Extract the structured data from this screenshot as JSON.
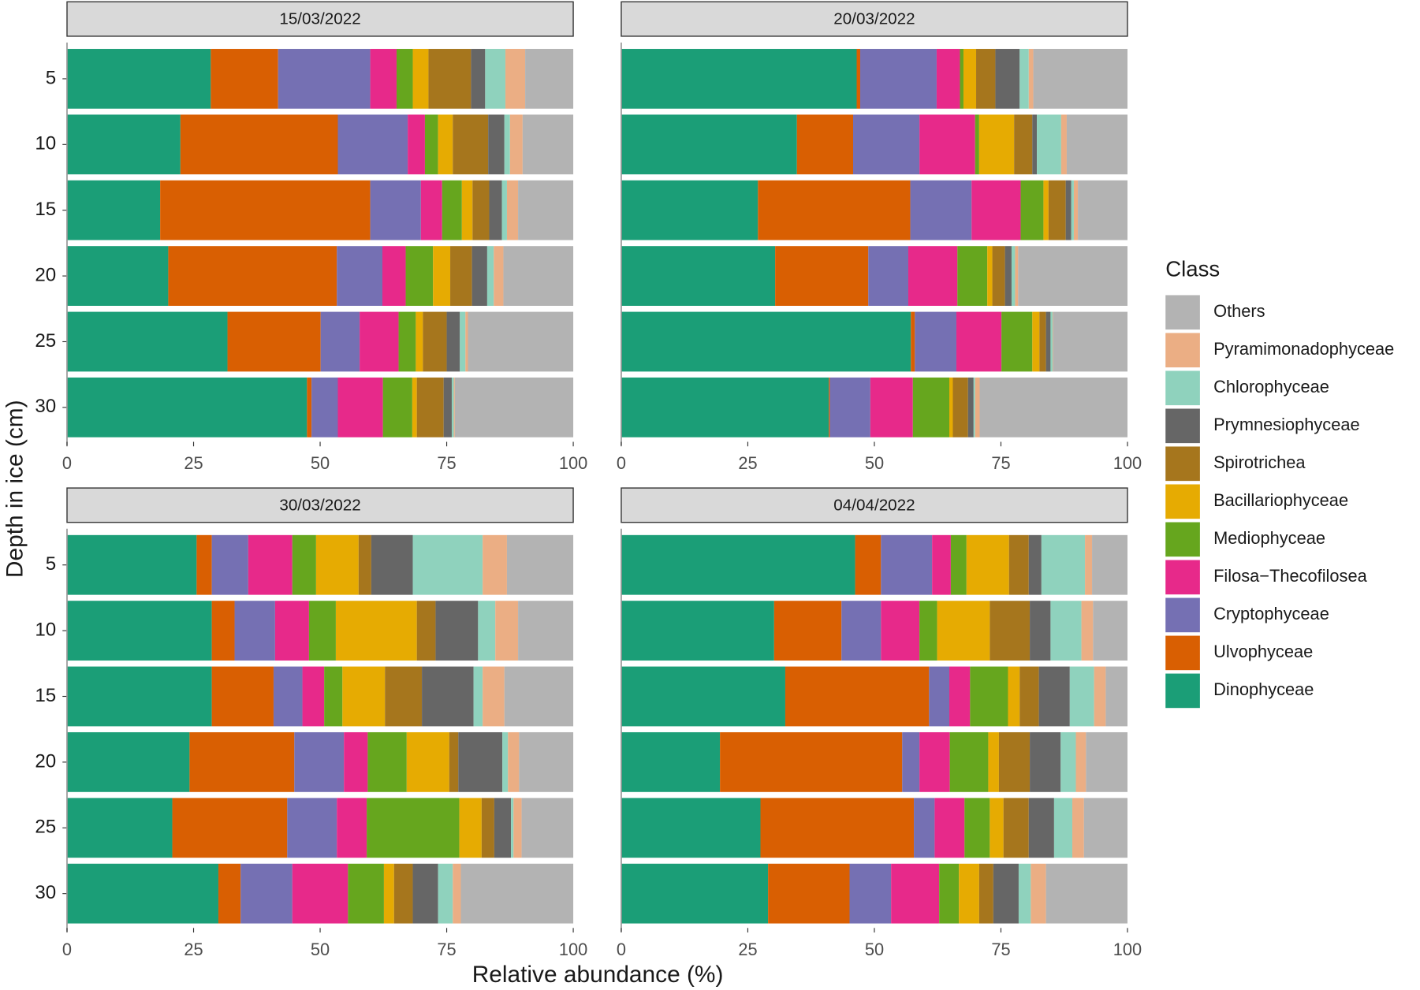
{
  "chart_data": {
    "type": "bar",
    "orientation": "horizontal",
    "stacked": true,
    "x_label": "Relative abundance (%)",
    "y_label": "Depth in ice (cm)",
    "legend_title": "Class",
    "legend_position": "right",
    "facets": [
      "15/03/2022",
      "20/03/2022",
      "30/03/2022",
      "04/04/2022"
    ],
    "categories": [
      5,
      10,
      15,
      20,
      25,
      30
    ],
    "xlim": [
      0,
      100
    ],
    "xticks": [
      0,
      25,
      50,
      75,
      100
    ],
    "series": [
      {
        "name": "Dinophyceae",
        "color": "#1b9e77",
        "values": [
          [
            28.4,
            22.4,
            18.4,
            20.0,
            31.7,
            47.4
          ],
          [
            46.5,
            34.7,
            27.0,
            30.4,
            57.2,
            41.0
          ],
          [
            25.6,
            28.6,
            28.6,
            24.2,
            20.8,
            29.9
          ],
          [
            46.2,
            30.2,
            32.4,
            19.5,
            27.5,
            29.0
          ]
        ]
      },
      {
        "name": "Ulvophyceae",
        "color": "#d95f02",
        "values": [
          [
            13.3,
            31.1,
            41.5,
            33.3,
            18.4,
            0.9
          ],
          [
            0.7,
            11.1,
            30.1,
            18.4,
            0.8,
            0.2
          ],
          [
            3.0,
            4.5,
            12.2,
            20.7,
            22.7,
            4.4
          ],
          [
            5.1,
            13.3,
            28.4,
            36.0,
            30.3,
            16.1
          ]
        ]
      },
      {
        "name": "Cryptophyceae",
        "color": "#7570b3",
        "values": [
          [
            18.2,
            13.8,
            10.0,
            9.0,
            7.7,
            5.2
          ],
          [
            15.1,
            13.1,
            12.1,
            7.9,
            8.2,
            8.0
          ],
          [
            7.2,
            8.0,
            5.7,
            9.8,
            9.8,
            10.2
          ],
          [
            10.1,
            7.8,
            4.0,
            3.4,
            4.1,
            8.2
          ]
        ]
      },
      {
        "name": "Filosa−Thecofilosea",
        "color": "#e7298a",
        "values": [
          [
            5.2,
            3.4,
            4.2,
            4.6,
            7.7,
            8.9
          ],
          [
            4.6,
            11.0,
            9.7,
            9.7,
            8.9,
            8.4
          ],
          [
            8.7,
            6.7,
            4.3,
            4.7,
            5.9,
            11.0
          ],
          [
            3.7,
            7.6,
            4.1,
            6.0,
            5.9,
            9.5
          ]
        ]
      },
      {
        "name": "Mediophyceae",
        "color": "#66a61e",
        "values": [
          [
            3.2,
            2.6,
            3.9,
            5.4,
            3.4,
            5.8
          ],
          [
            0.7,
            0.8,
            4.5,
            5.9,
            6.1,
            7.2
          ],
          [
            4.7,
            5.3,
            3.6,
            7.7,
            18.3,
            7.1
          ],
          [
            3.1,
            3.5,
            7.5,
            7.6,
            5.0,
            3.9
          ]
        ]
      },
      {
        "name": "Bacillariophyceae",
        "color": "#e6ab02",
        "values": [
          [
            3.1,
            2.9,
            2.1,
            3.4,
            1.4,
            0.9
          ],
          [
            2.5,
            6.9,
            1.0,
            1.0,
            1.4,
            0.7
          ],
          [
            8.4,
            16.0,
            8.4,
            8.4,
            4.4,
            2.0
          ],
          [
            8.4,
            10.4,
            2.3,
            2.1,
            2.7,
            4.0
          ]
        ]
      },
      {
        "name": "Spirotrichea",
        "color": "#a6761d",
        "values": [
          [
            8.4,
            7.0,
            3.3,
            4.3,
            4.7,
            5.3
          ],
          [
            3.8,
            3.6,
            3.4,
            2.5,
            1.3,
            3.0
          ],
          [
            2.5,
            3.7,
            7.3,
            1.8,
            2.5,
            3.7
          ],
          [
            3.9,
            7.9,
            3.8,
            6.1,
            5.0,
            2.8
          ]
        ]
      },
      {
        "name": "Prymnesiophyceae",
        "color": "#666666",
        "values": [
          [
            2.8,
            3.2,
            2.5,
            3.0,
            2.6,
            1.6
          ],
          [
            4.8,
            0.9,
            1.1,
            1.3,
            0.9,
            1.1
          ],
          [
            8.2,
            8.4,
            10.2,
            8.7,
            3.3,
            5.0
          ],
          [
            2.5,
            4.1,
            6.1,
            6.1,
            5.0,
            5.0
          ]
        ]
      },
      {
        "name": "Chlorophyceae",
        "color": "#8fd2bd",
        "values": [
          [
            4.0,
            1.1,
            1.0,
            1.3,
            1.1,
            0.4
          ],
          [
            1.8,
            4.8,
            0.5,
            0.7,
            0.4,
            0.3
          ],
          [
            13.8,
            3.4,
            1.8,
            1.1,
            0.5,
            2.9
          ],
          [
            8.6,
            6.1,
            4.8,
            3.0,
            3.6,
            2.4
          ]
        ]
      },
      {
        "name": "Pyramimonadophyceae",
        "color": "#ebae84",
        "values": [
          [
            3.9,
            2.5,
            2.2,
            1.9,
            0.5,
            0.2
          ],
          [
            0.9,
            1.1,
            0.8,
            0.6,
            0.1,
            0.9
          ],
          [
            4.8,
            4.5,
            4.3,
            2.2,
            1.6,
            1.6
          ],
          [
            1.4,
            2.3,
            2.3,
            2.0,
            2.3,
            3.0
          ]
        ]
      },
      {
        "name": "Others",
        "color": "#b3b3b3",
        "values": [
          [
            9.5,
            10.0,
            10.9,
            13.8,
            20.8,
            23.4
          ],
          [
            18.6,
            12.0,
            9.8,
            21.6,
            14.7,
            29.2
          ],
          [
            13.1,
            10.9,
            13.6,
            10.7,
            10.2,
            22.2
          ],
          [
            7.0,
            6.8,
            4.3,
            8.2,
            8.6,
            16.1
          ]
        ]
      }
    ]
  }
}
